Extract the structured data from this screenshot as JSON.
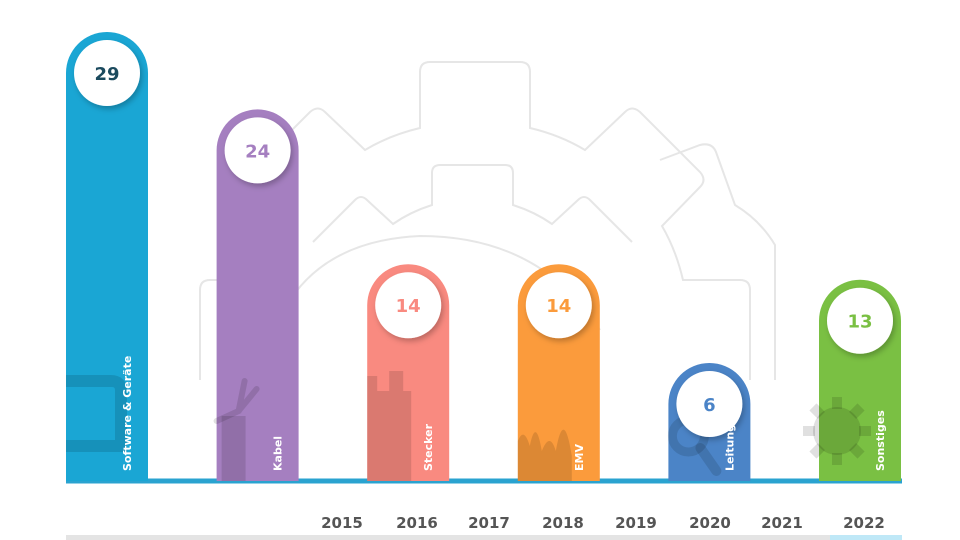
{
  "chart_data": {
    "type": "bar",
    "categories": [
      "Software & Geräte",
      "Kabel",
      "Stecker",
      "EMV",
      "Leitungen",
      "Sonstiges"
    ],
    "values": [
      29,
      24,
      14,
      14,
      6,
      13
    ],
    "colors": [
      "#1aa6d4",
      "#a57fc0",
      "#f98a80",
      "#fb9b3c",
      "#4b84c7",
      "#7ac043"
    ],
    "icons": [
      "monitor-icon",
      "cable-icon",
      "plug-icon",
      "wave-icon",
      "magnifier-icon",
      "gear-icon"
    ],
    "years": [
      "2015",
      "2016",
      "2017",
      "2018",
      "2019",
      "2020",
      "2021",
      "2022"
    ],
    "ylim": [
      0,
      29
    ],
    "grid": false,
    "legend": "none",
    "title": "",
    "xlabel": "",
    "ylabel": ""
  }
}
